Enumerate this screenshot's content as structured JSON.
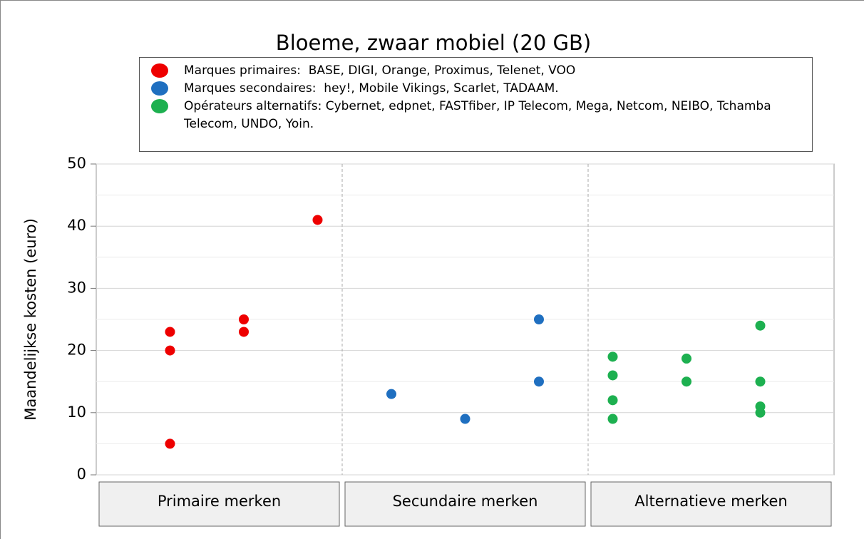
{
  "chart_data": {
    "type": "scatter",
    "title": "Bloeme, zwaar mobiel (20 GB)",
    "ylabel": "Maandelijkse kosten (euro)",
    "categories": [
      "Primaire merken",
      "Secundaire merken",
      "Alternatieve merken"
    ],
    "xlim": [
      0,
      10
    ],
    "ylim": [
      0,
      50
    ],
    "yticks": [
      0,
      10,
      20,
      30,
      40,
      50
    ],
    "grid": true,
    "series": [
      {
        "name": "Marques primaires:  BASE, DIGI, Orange, Proximus, Telenet, VOO",
        "color": "#ee0000",
        "x": [
          1,
          1,
          1,
          2,
          2,
          3
        ],
        "values": [
          23,
          20,
          5,
          25,
          23,
          41
        ]
      },
      {
        "name": "Marques secondaires:  hey!, Mobile Vikings, Scarlet, TADAAM.",
        "color": "#1f6fc0",
        "x": [
          4,
          5,
          6,
          6
        ],
        "values": [
          13,
          9,
          25,
          15
        ]
      },
      {
        "name": "Opérateurs alternatifs: Cybernet, edpnet, FASTfiber, IP Telecom, Mega, Netcom, NEIBO, Tchamba Telecom, UNDO, Yoin.",
        "color": "#1db050",
        "x": [
          7,
          7,
          7,
          7,
          8,
          8,
          9,
          9,
          9,
          9
        ],
        "values": [
          19,
          16,
          12,
          9,
          18.7,
          15,
          24,
          15,
          11,
          10
        ]
      }
    ]
  }
}
